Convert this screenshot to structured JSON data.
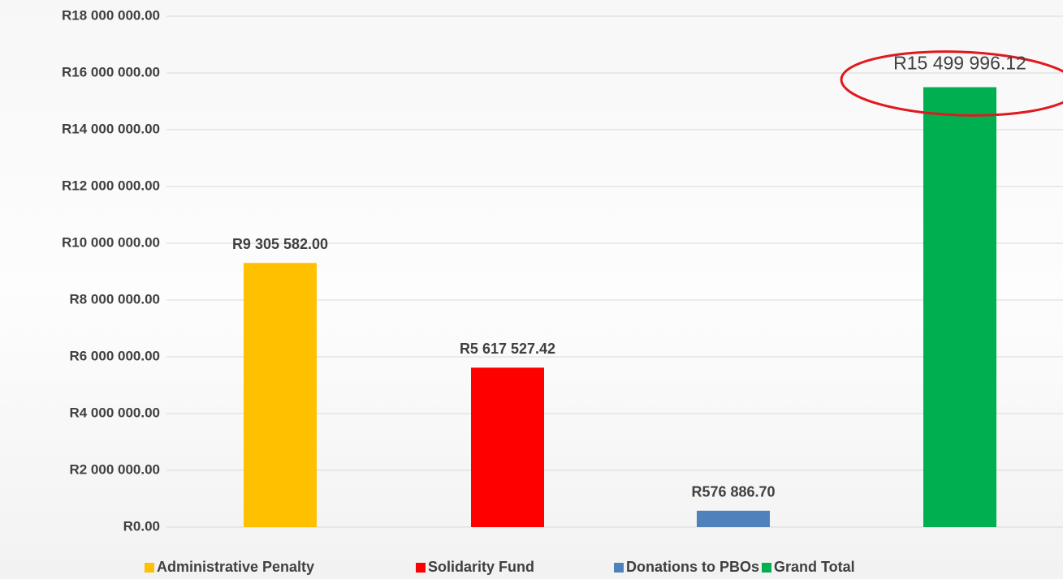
{
  "chart_data": {
    "type": "bar",
    "categories": [
      null
    ],
    "series": [
      {
        "name": "Administrative Penalty",
        "color": "#ffc000",
        "values": [
          9305582.0
        ],
        "value_labels": [
          "R9 305 582.00"
        ]
      },
      {
        "name": "Solidarity Fund",
        "color": "#ff0000",
        "values": [
          5617527.42
        ],
        "value_labels": [
          "R5 617 527.42"
        ]
      },
      {
        "name": "Donations to PBOs",
        "color": "#4f81bd",
        "values": [
          576886.7
        ],
        "value_labels": [
          "R576 886.70"
        ]
      },
      {
        "name": "Grand Total",
        "color": "#00b050",
        "values": [
          15499996.12
        ],
        "value_labels": [
          "R15 499 996.12"
        ]
      }
    ],
    "ylim": [
      0,
      18000000
    ],
    "yticks": [
      {
        "value": 0,
        "label": "R0.00"
      },
      {
        "value": 2000000,
        "label": "R2 000 000.00"
      },
      {
        "value": 4000000,
        "label": "R4 000 000.00"
      },
      {
        "value": 6000000,
        "label": "R6 000 000.00"
      },
      {
        "value": 8000000,
        "label": "R8 000 000.00"
      },
      {
        "value": 10000000,
        "label": "R10 000 000.00"
      },
      {
        "value": 12000000,
        "label": "R12 000 000.00"
      },
      {
        "value": 14000000,
        "label": "R14 000 000.00"
      },
      {
        "value": 16000000,
        "label": "R16 000 000.00"
      },
      {
        "value": 18000000,
        "label": "R18 000 000.00"
      }
    ],
    "grid": true,
    "legend": "bottom"
  }
}
